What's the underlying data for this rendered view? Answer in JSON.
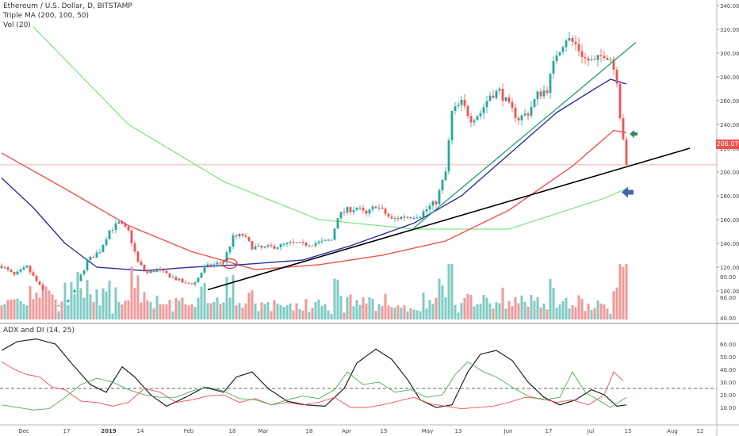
{
  "chart_data": [
    {
      "type": "candlestick",
      "legend_lines": [
        "Ethereum / U.S. Dollar, D, BITSTAMP",
        "Triple MA (200, 100, 50)",
        "Vol (20)"
      ],
      "x_tick_labels": [
        "Dec",
        "17",
        "2019",
        "14",
        "Feb",
        "18",
        "Mar",
        "18",
        "Apr",
        "15",
        "May",
        "13",
        "Jun",
        "17",
        "Jul",
        "15",
        "Aug",
        "12"
      ],
      "y_axis_labels": [
        "340.00",
        "320.00",
        "300.00",
        "280.00",
        "260.00",
        "240.00",
        "220.00",
        "200.00",
        "180.00",
        "160.00",
        "140.00",
        "120.00",
        "100.00"
      ],
      "ylim": [
        92,
        342
      ],
      "last_price_label": "206.07",
      "last_price": 206.07,
      "colors": {
        "up": "#26a69a",
        "down": "#ef5350",
        "ma200": "#66e066",
        "ma100": "#ef5350",
        "ma50": "#2e2e9e",
        "trend_line": "#000000",
        "channel_line": "#1e9e70",
        "arrow_green": "#2e8b57",
        "arrow_blue": "#4169a8"
      },
      "anchors": [
        {
          "x": 0,
          "p": 121
        },
        {
          "x": 4,
          "p": 113
        },
        {
          "x": 8,
          "p": 120
        },
        {
          "x": 12,
          "p": 104
        },
        {
          "x": 16,
          "p": 88
        },
        {
          "x": 19,
          "p": 86
        },
        {
          "x": 23,
          "p": 101
        },
        {
          "x": 27,
          "p": 125
        },
        {
          "x": 31,
          "p": 134
        },
        {
          "x": 34,
          "p": 151
        },
        {
          "x": 37,
          "p": 157
        },
        {
          "x": 40,
          "p": 150
        },
        {
          "x": 43,
          "p": 124
        },
        {
          "x": 46,
          "p": 115
        },
        {
          "x": 49,
          "p": 118
        },
        {
          "x": 52,
          "p": 114
        },
        {
          "x": 55,
          "p": 110
        },
        {
          "x": 58,
          "p": 106
        },
        {
          "x": 61,
          "p": 107
        },
        {
          "x": 64,
          "p": 120
        },
        {
          "x": 67,
          "p": 122
        },
        {
          "x": 70,
          "p": 125
        },
        {
          "x": 73,
          "p": 145
        },
        {
          "x": 76,
          "p": 147
        },
        {
          "x": 79,
          "p": 137
        },
        {
          "x": 82,
          "p": 136
        },
        {
          "x": 85,
          "p": 137
        },
        {
          "x": 88,
          "p": 138
        },
        {
          "x": 91,
          "p": 140
        },
        {
          "x": 95,
          "p": 139
        },
        {
          "x": 98,
          "p": 140
        },
        {
          "x": 101,
          "p": 141
        },
        {
          "x": 104,
          "p": 143
        },
        {
          "x": 106,
          "p": 163
        },
        {
          "x": 109,
          "p": 168
        },
        {
          "x": 112,
          "p": 170
        },
        {
          "x": 115,
          "p": 164
        },
        {
          "x": 118,
          "p": 172
        },
        {
          "x": 121,
          "p": 165
        },
        {
          "x": 123,
          "p": 160
        },
        {
          "x": 126,
          "p": 162
        },
        {
          "x": 129,
          "p": 163
        },
        {
          "x": 132,
          "p": 164
        },
        {
          "x": 135,
          "p": 171
        },
        {
          "x": 137,
          "p": 175
        },
        {
          "x": 140,
          "p": 200
        },
        {
          "x": 142,
          "p": 250
        },
        {
          "x": 145,
          "p": 258
        },
        {
          "x": 148,
          "p": 245
        },
        {
          "x": 151,
          "p": 250
        },
        {
          "x": 154,
          "p": 265
        },
        {
          "x": 157,
          "p": 268
        },
        {
          "x": 160,
          "p": 255
        },
        {
          "x": 163,
          "p": 245
        },
        {
          "x": 166,
          "p": 250
        },
        {
          "x": 169,
          "p": 265
        },
        {
          "x": 172,
          "p": 270
        },
        {
          "x": 175,
          "p": 300
        },
        {
          "x": 178,
          "p": 313
        },
        {
          "x": 181,
          "p": 307
        },
        {
          "x": 184,
          "p": 295
        },
        {
          "x": 187,
          "p": 292
        },
        {
          "x": 190,
          "p": 300
        },
        {
          "x": 192,
          "p": 296
        },
        {
          "x": 194,
          "p": 278
        },
        {
          "x": 195,
          "p": 248
        },
        {
          "x": 196,
          "p": 229
        },
        {
          "x": 197,
          "p": 206.07
        }
      ],
      "ma_anchors": {
        "ma200": [
          {
            "x": 10,
            "p": 322
          },
          {
            "x": 40,
            "p": 240
          },
          {
            "x": 70,
            "p": 192
          },
          {
            "x": 100,
            "p": 160
          },
          {
            "x": 130,
            "p": 152
          },
          {
            "x": 160,
            "p": 152
          },
          {
            "x": 190,
            "p": 178
          },
          {
            "x": 197,
            "p": 186
          }
        ],
        "ma100": [
          {
            "x": 0,
            "p": 216
          },
          {
            "x": 20,
            "p": 186
          },
          {
            "x": 40,
            "p": 155
          },
          {
            "x": 60,
            "p": 133
          },
          {
            "x": 80,
            "p": 118
          },
          {
            "x": 100,
            "p": 122
          },
          {
            "x": 120,
            "p": 130
          },
          {
            "x": 140,
            "p": 142
          },
          {
            "x": 160,
            "p": 168
          },
          {
            "x": 180,
            "p": 205
          },
          {
            "x": 193,
            "p": 235
          },
          {
            "x": 197,
            "p": 233
          }
        ],
        "ma50": [
          {
            "x": 0,
            "p": 195
          },
          {
            "x": 10,
            "p": 170
          },
          {
            "x": 20,
            "p": 140
          },
          {
            "x": 30,
            "p": 120
          },
          {
            "x": 45,
            "p": 117
          },
          {
            "x": 60,
            "p": 120
          },
          {
            "x": 75,
            "p": 122
          },
          {
            "x": 95,
            "p": 126
          },
          {
            "x": 110,
            "p": 138
          },
          {
            "x": 130,
            "p": 157
          },
          {
            "x": 145,
            "p": 180
          },
          {
            "x": 160,
            "p": 215
          },
          {
            "x": 175,
            "p": 250
          },
          {
            "x": 187,
            "p": 270
          },
          {
            "x": 192,
            "p": 278
          },
          {
            "x": 197,
            "p": 274
          }
        ]
      },
      "trend_lines": [
        {
          "name": "support",
          "from": {
            "x": 65,
            "p": 101
          },
          "to": {
            "x": 217,
            "p": 220
          }
        },
        {
          "name": "channel",
          "from": {
            "x": 130,
            "p": 153
          },
          "to": {
            "x": 200,
            "p": 309
          }
        }
      ],
      "volume": {
        "y_axis_labels": [
          "80.00",
          "60.00",
          "40.00"
        ]
      }
    },
    {
      "type": "line",
      "legend": "ADX and DI (14, 25)",
      "y_axis_labels": [
        "60.00",
        "50.00",
        "40.00",
        "30.00",
        "20.00",
        "10.00"
      ],
      "ylim": [
        0,
        70
      ],
      "threshold": 25,
      "series": [
        {
          "color": "#222222",
          "anchors": [
            {
              "x": 0,
              "v": 55
            },
            {
              "x": 5,
              "v": 62
            },
            {
              "x": 11,
              "v": 64
            },
            {
              "x": 17,
              "v": 60
            },
            {
              "x": 22,
              "v": 45
            },
            {
              "x": 28,
              "v": 28
            },
            {
              "x": 33,
              "v": 22
            },
            {
              "x": 38,
              "v": 42
            },
            {
              "x": 42,
              "v": 34
            },
            {
              "x": 47,
              "v": 20
            },
            {
              "x": 52,
              "v": 11
            },
            {
              "x": 58,
              "v": 18
            },
            {
              "x": 64,
              "v": 26
            },
            {
              "x": 70,
              "v": 22
            },
            {
              "x": 74,
              "v": 34
            },
            {
              "x": 79,
              "v": 38
            },
            {
              "x": 84,
              "v": 25
            },
            {
              "x": 90,
              "v": 15
            },
            {
              "x": 96,
              "v": 12
            },
            {
              "x": 102,
              "v": 11
            },
            {
              "x": 108,
              "v": 25
            },
            {
              "x": 112,
              "v": 45
            },
            {
              "x": 118,
              "v": 56
            },
            {
              "x": 123,
              "v": 48
            },
            {
              "x": 128,
              "v": 32
            },
            {
              "x": 132,
              "v": 16
            },
            {
              "x": 137,
              "v": 10
            },
            {
              "x": 142,
              "v": 12
            },
            {
              "x": 147,
              "v": 38
            },
            {
              "x": 151,
              "v": 52
            },
            {
              "x": 156,
              "v": 55
            },
            {
              "x": 161,
              "v": 47
            },
            {
              "x": 166,
              "v": 30
            },
            {
              "x": 171,
              "v": 18
            },
            {
              "x": 176,
              "v": 12
            },
            {
              "x": 181,
              "v": 16
            },
            {
              "x": 186,
              "v": 24
            },
            {
              "x": 190,
              "v": 20
            },
            {
              "x": 194,
              "v": 11
            },
            {
              "x": 197,
              "v": 12
            }
          ]
        },
        {
          "color": "#ef5350",
          "anchors": [
            {
              "x": 0,
              "v": 46
            },
            {
              "x": 4,
              "v": 40
            },
            {
              "x": 8,
              "v": 36
            },
            {
              "x": 12,
              "v": 34
            },
            {
              "x": 16,
              "v": 26
            },
            {
              "x": 20,
              "v": 24
            },
            {
              "x": 25,
              "v": 15
            },
            {
              "x": 30,
              "v": 14
            },
            {
              "x": 35,
              "v": 11
            },
            {
              "x": 40,
              "v": 14
            },
            {
              "x": 45,
              "v": 25
            },
            {
              "x": 50,
              "v": 22
            },
            {
              "x": 55,
              "v": 14
            },
            {
              "x": 60,
              "v": 16
            },
            {
              "x": 65,
              "v": 19
            },
            {
              "x": 70,
              "v": 20
            },
            {
              "x": 75,
              "v": 14
            },
            {
              "x": 80,
              "v": 17
            },
            {
              "x": 85,
              "v": 12
            },
            {
              "x": 90,
              "v": 14
            },
            {
              "x": 95,
              "v": 12
            },
            {
              "x": 100,
              "v": 14
            },
            {
              "x": 105,
              "v": 18
            },
            {
              "x": 110,
              "v": 10
            },
            {
              "x": 115,
              "v": 10
            },
            {
              "x": 120,
              "v": 12
            },
            {
              "x": 125,
              "v": 15
            },
            {
              "x": 130,
              "v": 18
            },
            {
              "x": 135,
              "v": 13
            },
            {
              "x": 140,
              "v": 11
            },
            {
              "x": 145,
              "v": 9
            },
            {
              "x": 150,
              "v": 10
            },
            {
              "x": 155,
              "v": 11
            },
            {
              "x": 160,
              "v": 14
            },
            {
              "x": 165,
              "v": 18
            },
            {
              "x": 170,
              "v": 17
            },
            {
              "x": 175,
              "v": 14
            },
            {
              "x": 180,
              "v": 16
            },
            {
              "x": 185,
              "v": 12
            },
            {
              "x": 190,
              "v": 20
            },
            {
              "x": 193,
              "v": 38
            },
            {
              "x": 196,
              "v": 31
            }
          ]
        },
        {
          "color": "#4caf50",
          "anchors": [
            {
              "x": 0,
              "v": 12
            },
            {
              "x": 5,
              "v": 10
            },
            {
              "x": 10,
              "v": 8
            },
            {
              "x": 15,
              "v": 9
            },
            {
              "x": 20,
              "v": 18
            },
            {
              "x": 25,
              "v": 28
            },
            {
              "x": 30,
              "v": 33
            },
            {
              "x": 35,
              "v": 30
            },
            {
              "x": 40,
              "v": 24
            },
            {
              "x": 45,
              "v": 20
            },
            {
              "x": 50,
              "v": 18
            },
            {
              "x": 55,
              "v": 18
            },
            {
              "x": 60,
              "v": 23
            },
            {
              "x": 65,
              "v": 26
            },
            {
              "x": 70,
              "v": 23
            },
            {
              "x": 75,
              "v": 17
            },
            {
              "x": 80,
              "v": 16
            },
            {
              "x": 85,
              "v": 12
            },
            {
              "x": 90,
              "v": 16
            },
            {
              "x": 95,
              "v": 19
            },
            {
              "x": 100,
              "v": 17
            },
            {
              "x": 105,
              "v": 24
            },
            {
              "x": 109,
              "v": 38
            },
            {
              "x": 114,
              "v": 28
            },
            {
              "x": 119,
              "v": 30
            },
            {
              "x": 124,
              "v": 22
            },
            {
              "x": 129,
              "v": 24
            },
            {
              "x": 134,
              "v": 18
            },
            {
              "x": 139,
              "v": 20
            },
            {
              "x": 143,
              "v": 36
            },
            {
              "x": 147,
              "v": 46
            },
            {
              "x": 152,
              "v": 38
            },
            {
              "x": 156,
              "v": 34
            },
            {
              "x": 161,
              "v": 26
            },
            {
              "x": 166,
              "v": 19
            },
            {
              "x": 171,
              "v": 16
            },
            {
              "x": 176,
              "v": 18
            },
            {
              "x": 180,
              "v": 38
            },
            {
              "x": 184,
              "v": 22
            },
            {
              "x": 188,
              "v": 16
            },
            {
              "x": 192,
              "v": 10
            },
            {
              "x": 197,
              "v": 18
            }
          ]
        }
      ]
    }
  ]
}
